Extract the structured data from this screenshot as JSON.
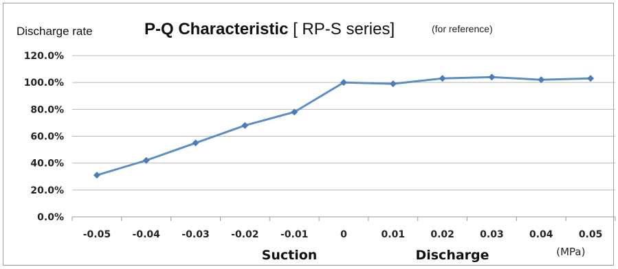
{
  "chart_data": {
    "type": "line",
    "title": "P-Q Characteristic",
    "title_suffix": "[ RP-S series]",
    "note": "(for reference)",
    "ylabel": "Discharge rate",
    "xunit": "(MPa)",
    "x_section_labels": {
      "left": "Suction",
      "right": "Discharge"
    },
    "categories": [
      "-0.05",
      "-0.04",
      "-0.03",
      "-0.02",
      "-0.01",
      "0",
      "0.01",
      "0.02",
      "0.03",
      "0.04",
      "0.05"
    ],
    "values": [
      31,
      42,
      55,
      68,
      78,
      100,
      99,
      103,
      104,
      102,
      103
    ],
    "ylim": [
      0,
      120
    ],
    "yticks": [
      "0.0%",
      "20.0%",
      "40.0%",
      "60.0%",
      "80.0%",
      "100.0%",
      "120.0%"
    ],
    "grid": true,
    "line_color": "#5b8ec4",
    "marker_color": "#4a7db8"
  }
}
